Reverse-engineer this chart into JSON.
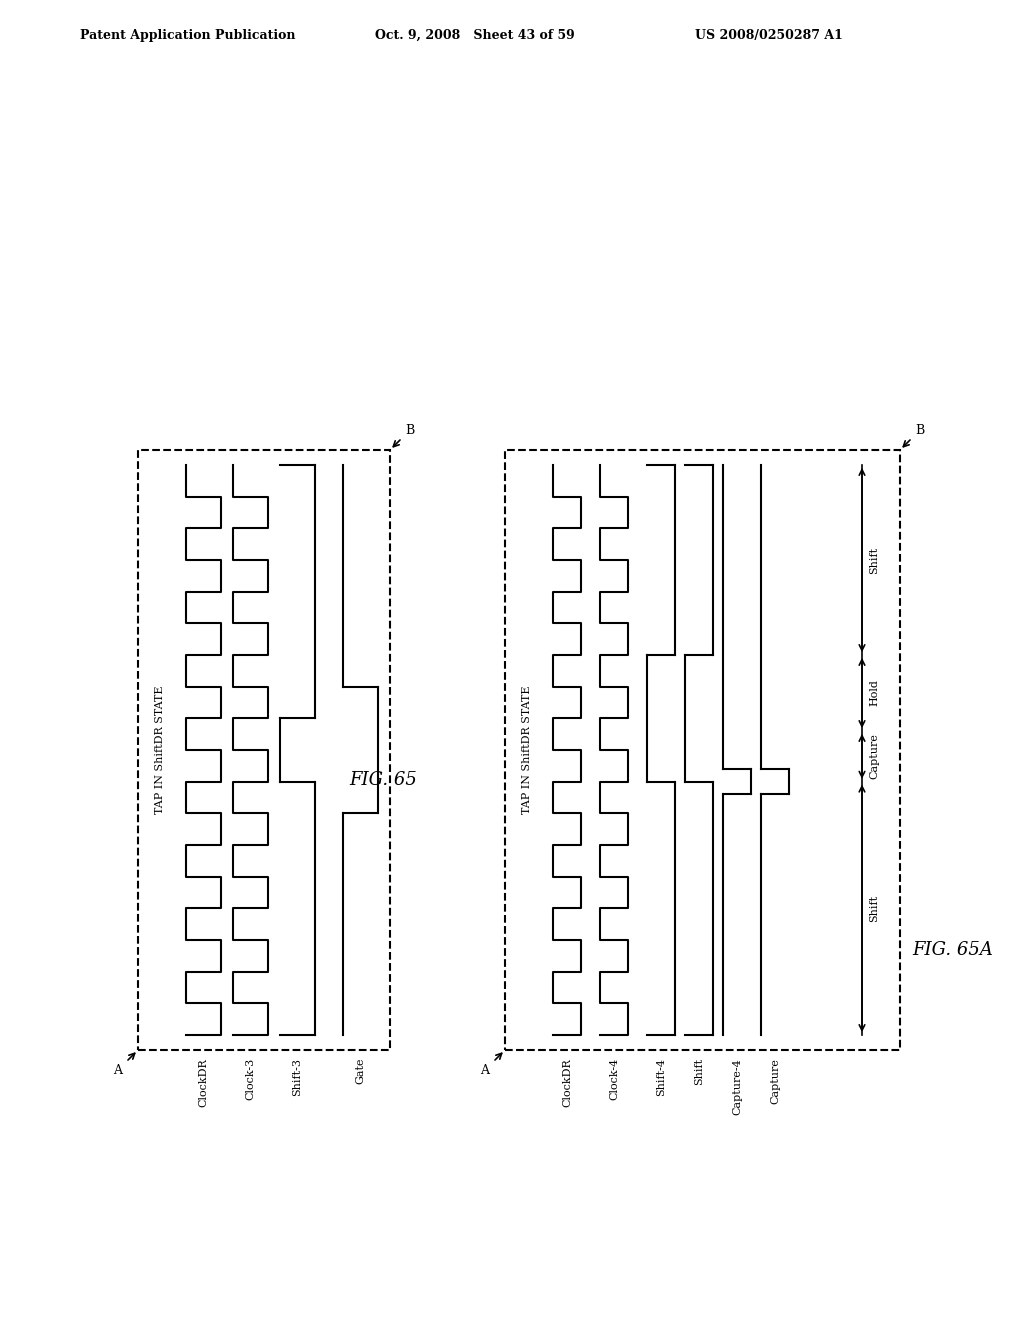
{
  "header_left": "Patent Application Publication",
  "header_mid": "Oct. 9, 2008   Sheet 43 of 59",
  "header_right": "US 2008/0250287 A1",
  "fig65_title": "FIG. 65",
  "fig65a_title": "FIG. 65A",
  "tap_label": "TAP IN ShiftDR STATE",
  "fig65_signals": [
    "ClockDR",
    "Clock-3",
    "Shift-3",
    "Gate"
  ],
  "fig65a_signals": [
    "ClockDR",
    "Clock-4",
    "Shift-4",
    "Shift",
    "Capture-4",
    "Capture"
  ],
  "fig65a_region_labels": [
    "Shift",
    "Capture",
    "Hold",
    "Shift"
  ],
  "bg_color": "#ffffff",
  "line_color": "#000000"
}
